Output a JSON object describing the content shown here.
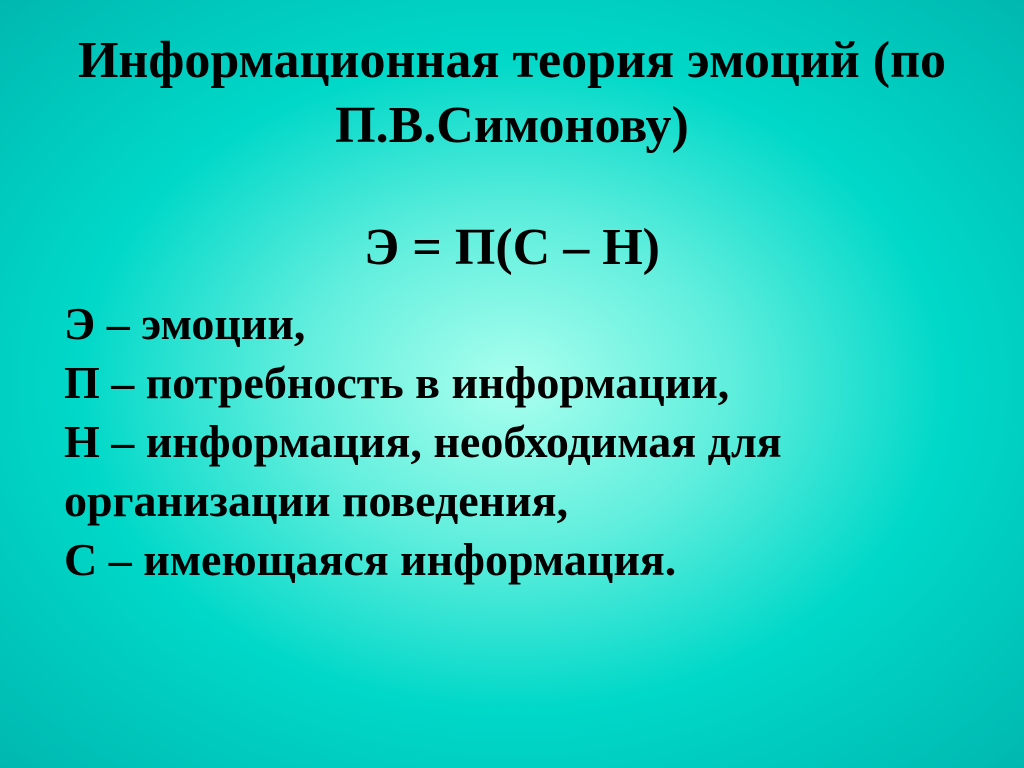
{
  "slide": {
    "background": {
      "gradient_center": "#aaffee",
      "gradient_mid1": "#60eedd",
      "gradient_mid2": "#00d8c8",
      "gradient_edge": "#00b8b0"
    },
    "text_color": "#000000",
    "font_family": "Times New Roman",
    "title": {
      "text": "Информационная теория эмоций (по П.В.Симонову)",
      "fontsize": 52,
      "weight": "bold",
      "align": "center"
    },
    "formula": {
      "text": "Э = П(С – Н)",
      "fontsize": 52,
      "weight": "bold",
      "align": "center"
    },
    "definitions": {
      "fontsize": 46,
      "weight": "bold",
      "align": "left",
      "lines": [
        "Э – эмоции,",
        "П – потребность в информации,",
        "Н – информация, необходимая для организации поведения,",
        "С – имеющаяся информация."
      ]
    }
  }
}
